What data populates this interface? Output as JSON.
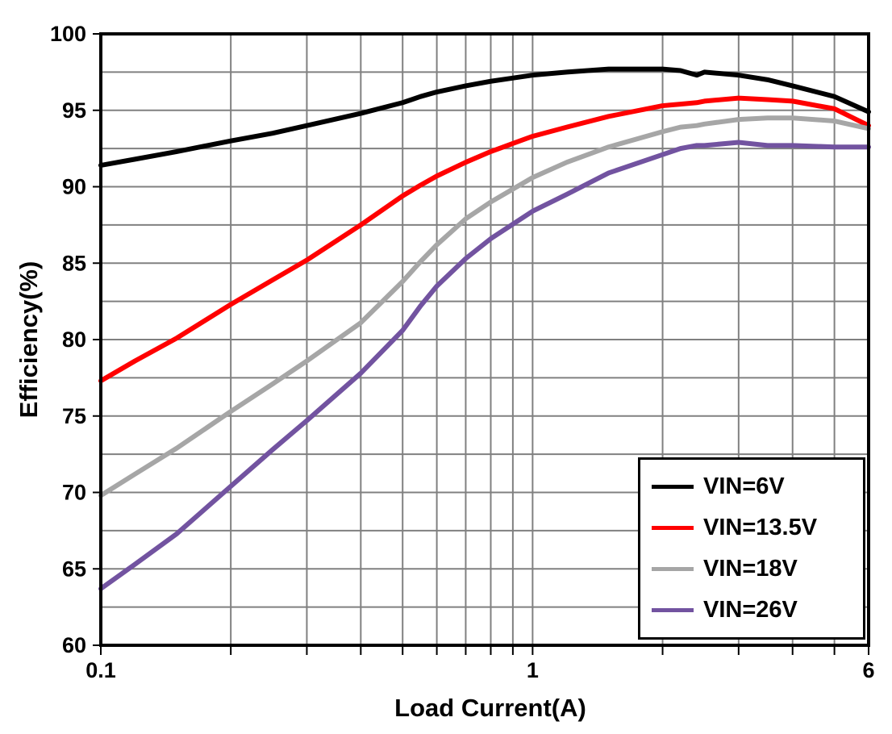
{
  "chart_data": {
    "type": "line",
    "title": "",
    "xlabel": "Load Current(A)",
    "ylabel": "Efficiency(%)",
    "x_scale": "log",
    "xlim": [
      0.1,
      6
    ],
    "ylim": [
      60,
      100
    ],
    "x_ticks": [
      {
        "value": 0.1,
        "label": "0.1"
      },
      {
        "value": 1,
        "label": "1"
      },
      {
        "value": 6,
        "label": "6"
      }
    ],
    "y_ticks": [
      {
        "value": 60,
        "label": "60"
      },
      {
        "value": 65,
        "label": "65"
      },
      {
        "value": 70,
        "label": "70"
      },
      {
        "value": 75,
        "label": "75"
      },
      {
        "value": 80,
        "label": "80"
      },
      {
        "value": 85,
        "label": "85"
      },
      {
        "value": 90,
        "label": "90"
      },
      {
        "value": 95,
        "label": "95"
      },
      {
        "value": 100,
        "label": "100"
      }
    ],
    "x_gridlines": [
      0.2,
      0.3,
      0.4,
      0.5,
      0.6,
      0.7,
      0.8,
      0.9,
      1,
      2,
      3,
      4,
      5
    ],
    "y_gridlines": [
      62.5,
      65,
      67.5,
      70,
      72.5,
      75,
      77.5,
      80,
      82.5,
      85,
      87.5,
      90,
      92.5,
      95,
      97.5
    ],
    "grid_on": true,
    "grid_color": "#808080",
    "frame_color": "#000000",
    "legend_position": "bottom-right",
    "x": [
      0.1,
      0.12,
      0.15,
      0.2,
      0.25,
      0.3,
      0.4,
      0.5,
      0.55,
      0.6,
      0.7,
      0.8,
      1.0,
      1.2,
      1.5,
      2.0,
      2.2,
      2.4,
      2.5,
      3.0,
      3.5,
      4.0,
      5.0,
      6.0
    ],
    "series": [
      {
        "name": "VIN=6V",
        "color": "#000000",
        "values": [
          91.4,
          91.8,
          92.3,
          93.0,
          93.5,
          94.0,
          94.8,
          95.5,
          95.9,
          96.2,
          96.6,
          96.9,
          97.3,
          97.5,
          97.7,
          97.7,
          97.6,
          97.3,
          97.5,
          97.3,
          97.0,
          96.6,
          95.9,
          94.9
        ]
      },
      {
        "name": "VIN=13.5V",
        "color": "#ff0000",
        "values": [
          77.3,
          78.6,
          80.1,
          82.3,
          83.9,
          85.2,
          87.5,
          89.4,
          90.1,
          90.7,
          91.6,
          92.3,
          93.3,
          93.9,
          94.6,
          95.3,
          95.4,
          95.5,
          95.6,
          95.8,
          95.7,
          95.6,
          95.1,
          94.0
        ]
      },
      {
        "name": "VIN=18V",
        "color": "#a6a6a6",
        "values": [
          69.8,
          71.2,
          72.9,
          75.3,
          77.1,
          78.6,
          81.1,
          83.8,
          85.1,
          86.2,
          87.9,
          89.0,
          90.6,
          91.6,
          92.6,
          93.6,
          93.9,
          94.0,
          94.1,
          94.4,
          94.5,
          94.5,
          94.3,
          93.8
        ]
      },
      {
        "name": "VIN=26V",
        "color": "#7253a0",
        "values": [
          63.7,
          65.3,
          67.3,
          70.4,
          72.8,
          74.7,
          77.8,
          80.6,
          82.2,
          83.5,
          85.3,
          86.6,
          88.4,
          89.5,
          90.9,
          92.1,
          92.5,
          92.7,
          92.7,
          92.9,
          92.7,
          92.7,
          92.6,
          92.6
        ]
      }
    ]
  }
}
